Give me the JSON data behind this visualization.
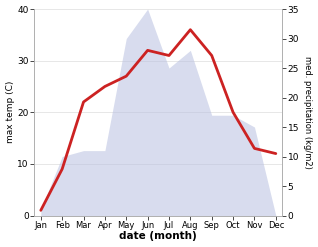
{
  "months": [
    "Jan",
    "Feb",
    "Mar",
    "Apr",
    "May",
    "Jun",
    "Jul",
    "Aug",
    "Sep",
    "Oct",
    "Nov",
    "Dec"
  ],
  "temperature": [
    1,
    9,
    22,
    25,
    27,
    32,
    31,
    36,
    31,
    20,
    13,
    12
  ],
  "precipitation": [
    1,
    10,
    11,
    11,
    30,
    35,
    25,
    28,
    17,
    17,
    15,
    0
  ],
  "temp_color": "#cc2222",
  "precip_fill_color": "#b8c0e0",
  "xlabel": "date (month)",
  "ylabel_left": "max temp (C)",
  "ylabel_right": "med. precipitation (kg/m2)",
  "ylim_left": [
    0,
    40
  ],
  "ylim_right": [
    0,
    35
  ],
  "yticks_left": [
    0,
    10,
    20,
    30,
    40
  ],
  "yticks_right": [
    0,
    5,
    10,
    15,
    20,
    25,
    30,
    35
  ],
  "bg_color": "#ffffff",
  "line_width": 2.0,
  "precip_alpha": 0.55
}
